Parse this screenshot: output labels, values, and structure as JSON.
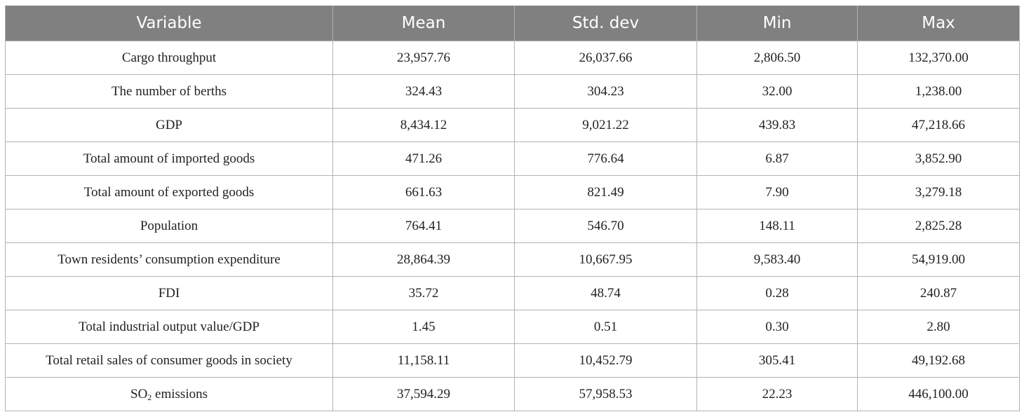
{
  "table": {
    "headers": [
      "Variable",
      "Mean",
      "Std. dev",
      "Min",
      "Max"
    ],
    "rows": [
      {
        "variable": "Cargo throughput",
        "mean": "23,957.76",
        "std_dev": "26,037.66",
        "min": "2,806.50",
        "max": "132,370.00"
      },
      {
        "variable": "The number of berths",
        "mean": "324.43",
        "std_dev": "304.23",
        "min": "32.00",
        "max": "1,238.00"
      },
      {
        "variable": "GDP",
        "mean": "8,434.12",
        "std_dev": "9,021.22",
        "min": "439.83",
        "max": "47,218.66"
      },
      {
        "variable": "Total amount of imported goods",
        "mean": "471.26",
        "std_dev": "776.64",
        "min": "6.87",
        "max": "3,852.90"
      },
      {
        "variable": "Total amount of exported goods",
        "mean": "661.63",
        "std_dev": "821.49",
        "min": "7.90",
        "max": "3,279.18"
      },
      {
        "variable": "Population",
        "mean": "764.41",
        "std_dev": "546.70",
        "min": "148.11",
        "max": "2,825.28"
      },
      {
        "variable": "Town residents’ consumption expenditure",
        "mean": "28,864.39",
        "std_dev": "10,667.95",
        "min": "9,583.40",
        "max": "54,919.00"
      },
      {
        "variable": "FDI",
        "mean": "35.72",
        "std_dev": "48.74",
        "min": "0.28",
        "max": "240.87"
      },
      {
        "variable": "Total industrial output value/GDP",
        "mean": "1.45",
        "std_dev": "0.51",
        "min": "0.30",
        "max": "2.80"
      },
      {
        "variable": "Total retail sales of consumer goods in society",
        "mean": "11,158.11",
        "std_dev": "10,452.79",
        "min": "305.41",
        "max": "49,192.68"
      },
      {
        "variable_prefix": "SO",
        "variable_subscript": "2",
        "variable_suffix": " emissions",
        "mean": "37,594.29",
        "std_dev": "57,958.53",
        "min": "22.23",
        "max": "446,100.00"
      }
    ]
  }
}
